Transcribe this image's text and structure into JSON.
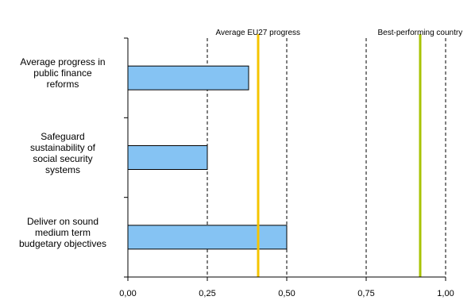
{
  "chart_data": {
    "type": "bar",
    "orientation": "horizontal",
    "categories": [
      "Average progress in public finance reforms",
      "Safeguard sustainability of social security systems",
      "Deliver on sound medium term budgetary objectives"
    ],
    "category_lines": [
      [
        "Average progress in",
        "public finance",
        "reforms"
      ],
      [
        "Safeguard",
        "sustainability of",
        "social security",
        "systems"
      ],
      [
        "Deliver on sound",
        "medium term",
        "budgetary objectives"
      ]
    ],
    "values": [
      0.38,
      0.25,
      0.5
    ],
    "xlim": [
      0,
      1
    ],
    "xticks": [
      0,
      0.25,
      0.5,
      0.75,
      1
    ],
    "xtick_labels": [
      "0,00",
      "0,25",
      "0,50",
      "0,75",
      "1,00"
    ],
    "grid": "vertical dashed",
    "bar_color": "#85C3F3",
    "bar_edge_color": "#000000",
    "reference_lines": [
      {
        "label": "Average EU27 progress",
        "value": 0.41,
        "color": "#F5C400"
      },
      {
        "label": "Best-performing country",
        "value": 0.92,
        "color": "#A8C300"
      }
    ]
  }
}
